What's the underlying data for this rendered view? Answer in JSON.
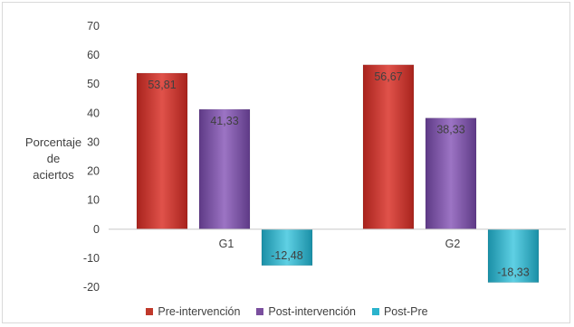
{
  "chart_data": {
    "type": "bar",
    "categories": [
      "G1",
      "G2"
    ],
    "series": [
      {
        "name": "Pre-intervención",
        "values": [
          53.81,
          56.67
        ],
        "labels": [
          "53,81",
          "56,67"
        ],
        "color": "#c0392b"
      },
      {
        "name": "Post-intervención",
        "values": [
          41.33,
          38.33
        ],
        "labels": [
          "41,33",
          "38,33"
        ],
        "color": "#7a4f9e"
      },
      {
        "name": "Post-Pre",
        "values": [
          -12.48,
          -18.33
        ],
        "labels": [
          "-12,48",
          "-18,33"
        ],
        "color": "#2bb3cc"
      }
    ],
    "ylabel": [
      "Porcentaje",
      "de",
      "aciertos"
    ],
    "ylim": [
      -20,
      70
    ],
    "yticks": [
      70,
      60,
      50,
      40,
      30,
      20,
      10,
      0,
      -10,
      -20
    ],
    "grid": false,
    "legend_position": "bottom"
  }
}
